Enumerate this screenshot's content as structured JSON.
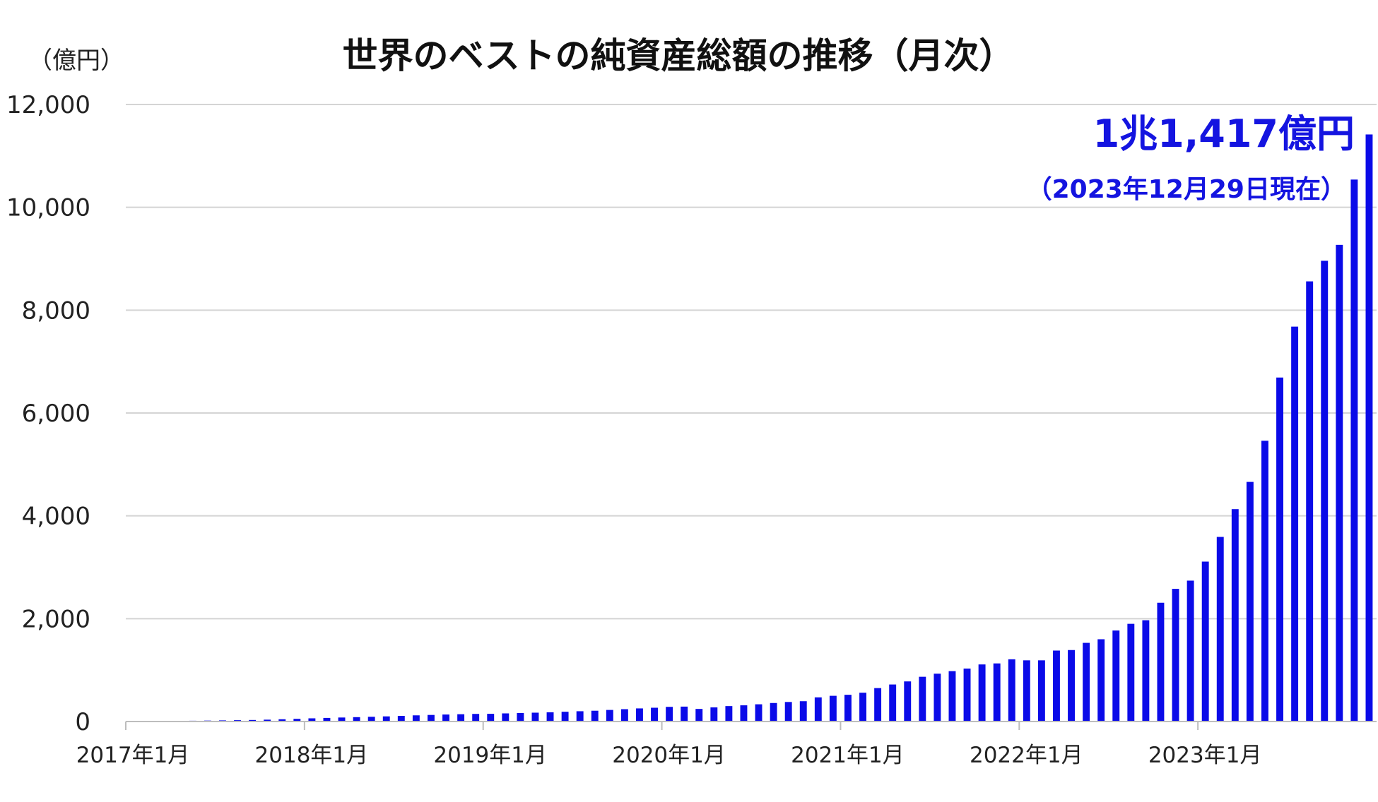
{
  "chart_data": {
    "type": "bar",
    "title": "世界のベストの純資産総額の推移（月次）",
    "unit_label": "（億円）",
    "ylim": [
      0,
      12000
    ],
    "yticks": [
      "0",
      "2,000",
      "4,000",
      "6,000",
      "8,000",
      "10,000",
      "12,000"
    ],
    "xtick_labels": [
      "2017年1月",
      "2018年1月",
      "2019年1月",
      "2020年1月",
      "2021年1月",
      "2022年1月",
      "2023年1月"
    ],
    "grid": true,
    "bar_color": "#0a0ae8",
    "annotation": {
      "main": "1兆1,417億円",
      "sub": "（2023年12月29日現在）",
      "color": "#1414e0"
    },
    "categories": [
      "2017-01",
      "2017-02",
      "2017-03",
      "2017-04",
      "2017-05",
      "2017-06",
      "2017-07",
      "2017-08",
      "2017-09",
      "2017-10",
      "2017-11",
      "2017-12",
      "2018-01",
      "2018-02",
      "2018-03",
      "2018-04",
      "2018-05",
      "2018-06",
      "2018-07",
      "2018-08",
      "2018-09",
      "2018-10",
      "2018-11",
      "2018-12",
      "2019-01",
      "2019-02",
      "2019-03",
      "2019-04",
      "2019-05",
      "2019-06",
      "2019-07",
      "2019-08",
      "2019-09",
      "2019-10",
      "2019-11",
      "2019-12",
      "2020-01",
      "2020-02",
      "2020-03",
      "2020-04",
      "2020-05",
      "2020-06",
      "2020-07",
      "2020-08",
      "2020-09",
      "2020-10",
      "2020-11",
      "2020-12",
      "2021-01",
      "2021-02",
      "2021-03",
      "2021-04",
      "2021-05",
      "2021-06",
      "2021-07",
      "2021-08",
      "2021-09",
      "2021-10",
      "2021-11",
      "2021-12",
      "2022-01",
      "2022-02",
      "2022-03",
      "2022-04",
      "2022-05",
      "2022-06",
      "2022-07",
      "2022-08",
      "2022-09",
      "2022-10",
      "2022-11",
      "2022-12",
      "2023-01",
      "2023-02",
      "2023-03",
      "2023-04",
      "2023-05",
      "2023-06",
      "2023-07",
      "2023-08",
      "2023-09",
      "2023-10",
      "2023-11",
      "2023-12"
    ],
    "values": [
      5,
      8,
      10,
      12,
      15,
      18,
      22,
      26,
      30,
      36,
      44,
      52,
      62,
      70,
      78,
      85,
      92,
      100,
      110,
      120,
      128,
      136,
      142,
      148,
      150,
      158,
      165,
      172,
      180,
      190,
      200,
      210,
      225,
      240,
      255,
      268,
      285,
      290,
      245,
      275,
      300,
      315,
      335,
      360,
      380,
      395,
      470,
      500,
      520,
      560,
      650,
      720,
      780,
      870,
      930,
      980,
      1030,
      1110,
      1130,
      1210,
      1190,
      1190,
      1380,
      1390,
      1530,
      1600,
      1770,
      1900,
      1970,
      2310,
      2580,
      2740,
      3110,
      3590,
      4130,
      4660,
      5460,
      6690,
      7680,
      8560,
      8960,
      9270,
      10540,
      11417
    ]
  }
}
